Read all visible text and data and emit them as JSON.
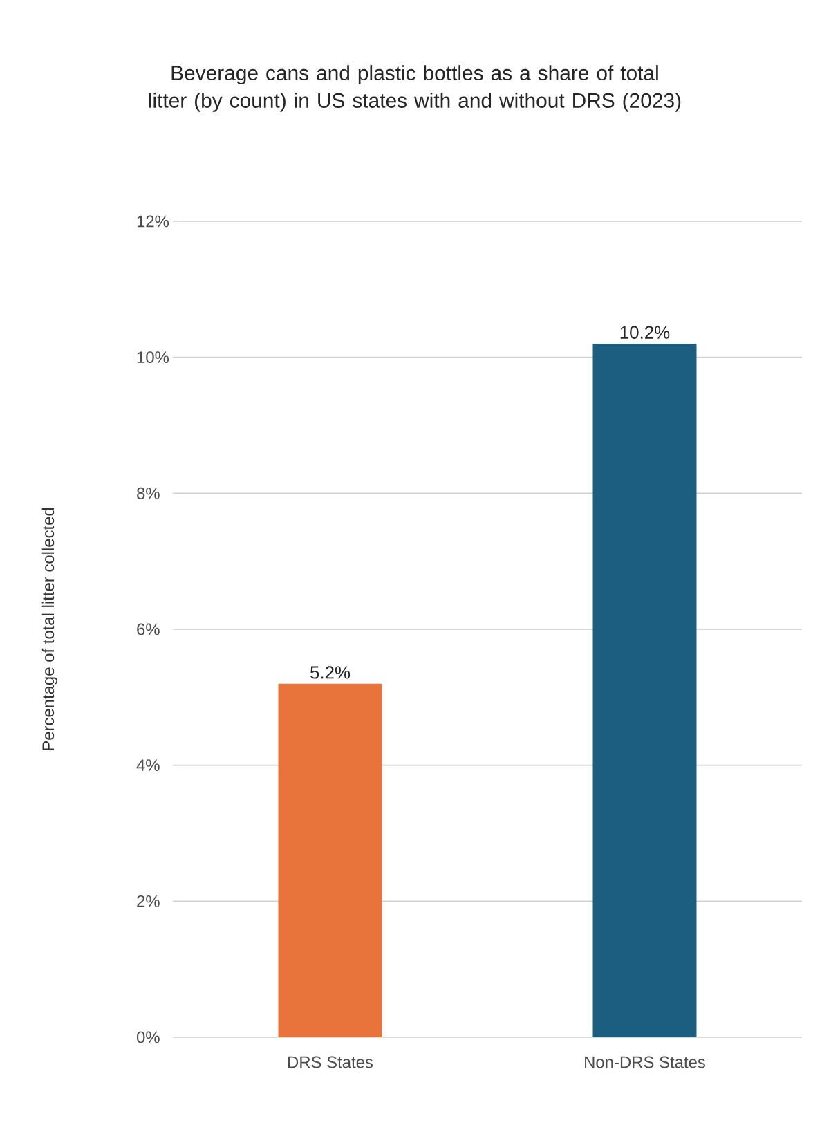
{
  "chart_data": {
    "type": "bar",
    "title": "Beverage cans and plastic bottles as a share of total litter (by count) in US states with and without DRS (2023)",
    "ylabel": "Percentage of total litter collected",
    "categories": [
      "DRS States",
      "Non-DRS States"
    ],
    "values": [
      5.2,
      10.2
    ],
    "colors": [
      "#e8743b",
      "#1b5e80"
    ],
    "value_labels": [
      "5.2%",
      "10.2%"
    ],
    "ylim": [
      0,
      12
    ],
    "yticks": [
      {
        "value": 0,
        "label": "0%"
      },
      {
        "value": 2,
        "label": "2%"
      },
      {
        "value": 4,
        "label": "4%"
      },
      {
        "value": 6,
        "label": "6%"
      },
      {
        "value": 8,
        "label": "8%"
      },
      {
        "value": 10,
        "label": "10%"
      },
      {
        "value": 12,
        "label": "12%"
      }
    ],
    "grid": "y"
  }
}
